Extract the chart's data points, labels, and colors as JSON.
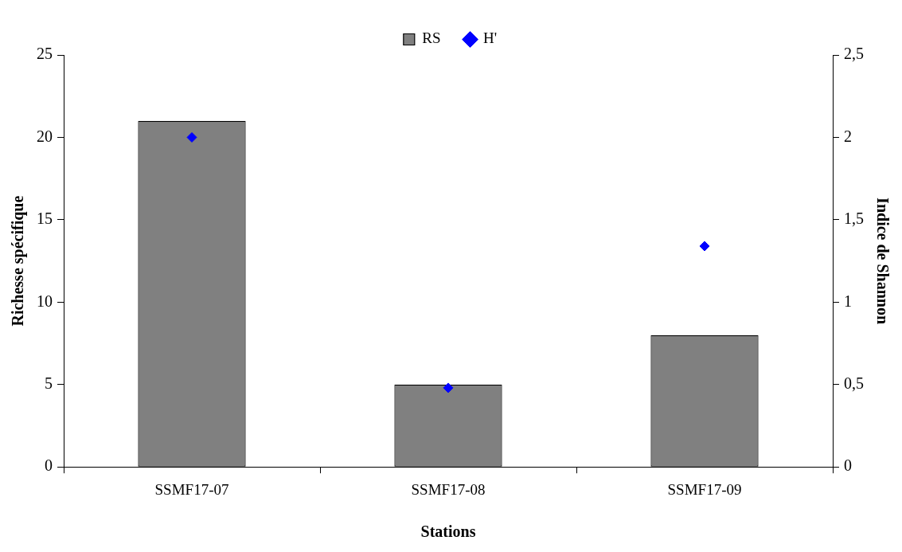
{
  "chart_data": {
    "type": "bar",
    "xlabel": "Stations",
    "ylabel": "Richesse spécifique",
    "y2label": "Indice de Shannon",
    "categories": [
      "SSMF17-07",
      "SSMF17-08",
      "SSMF17-09"
    ],
    "series": [
      {
        "name": "RS",
        "color": "#808080",
        "values": [
          21,
          5,
          8
        ]
      },
      {
        "name": "H'",
        "type": "scatter",
        "axis": "y2",
        "color": "#0000ff",
        "values": [
          2.0,
          0.48,
          1.34
        ]
      }
    ],
    "ylim": [
      0,
      25
    ],
    "yticks": [
      0,
      5,
      10,
      15,
      20,
      25
    ],
    "y2lim": [
      0,
      2.5
    ],
    "y2ticks": [
      0,
      {
        "value": 0.5,
        "label": "0,5"
      },
      1,
      {
        "value": 1.5,
        "label": "1,5"
      },
      2,
      {
        "value": 2.5,
        "label": "2,5"
      }
    ],
    "grid": false,
    "legend": "top",
    "marker": "diamond"
  }
}
